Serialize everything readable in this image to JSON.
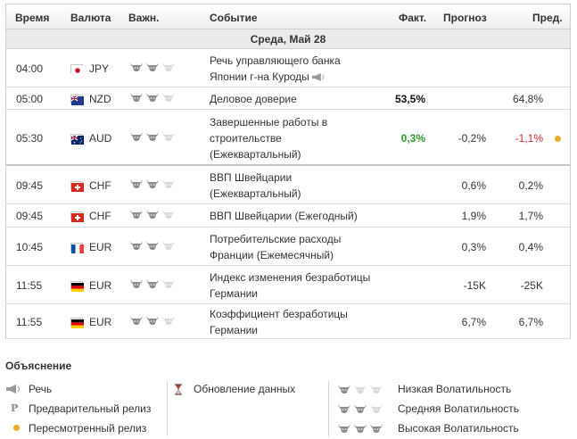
{
  "headers": {
    "time": "Время",
    "currency": "Валюта",
    "importance": "Важн.",
    "event": "Событие",
    "actual": "Факт.",
    "forecast": "Прогноз",
    "previous": "Пред."
  },
  "day_label": "Среда, Май 28",
  "events": [
    {
      "time": "04:00",
      "flag": "jp-flag-icon",
      "currency": "JPY",
      "bulls": 2,
      "event_lines": [
        "Речь управляющего банка",
        "Японии г-на Куроды"
      ],
      "speech": true,
      "actual": "",
      "forecast": "",
      "previous": ""
    },
    {
      "time": "05:00",
      "flag": "nz-flag-icon",
      "currency": "NZD",
      "bulls": 2,
      "event_lines": [
        "Деловое доверие"
      ],
      "actual": "53,5%",
      "actual_color": "#111111",
      "forecast": "",
      "previous": "64,8%"
    },
    {
      "time": "05:30",
      "flag": "au-flag-icon",
      "currency": "AUD",
      "bulls": 2,
      "event_lines": [
        "Завершенные работы в",
        "строительстве",
        "(Ежеквартальный)"
      ],
      "actual": "0,3%",
      "actual_color": "#2a9a2a",
      "forecast": "-0,2%",
      "previous": "-1,1%",
      "previous_color": "#d42a2a",
      "revised_dot": true
    },
    {
      "time": "09:45",
      "flag": "ch-flag-icon",
      "currency": "CHF",
      "bulls": 2,
      "event_lines": [
        "ВВП Швейцарии",
        "(Ежеквартальный)"
      ],
      "actual": "",
      "forecast": "0,6%",
      "previous": "0,2%"
    },
    {
      "time": "09:45",
      "flag": "ch-flag-icon",
      "currency": "CHF",
      "bulls": 2,
      "event_lines": [
        "ВВП Швейцарии (Ежегодный)"
      ],
      "actual": "",
      "forecast": "1,9%",
      "previous": "1,7%"
    },
    {
      "time": "10:45",
      "flag": "fr-flag-icon",
      "currency": "EUR",
      "bulls": 2,
      "event_lines": [
        "Потребительские расходы",
        "Франции (Ежемесячный)"
      ],
      "actual": "",
      "forecast": "0,3%",
      "previous": "0,4%"
    },
    {
      "time": "11:55",
      "flag": "de-flag-icon",
      "currency": "EUR",
      "bulls": 2,
      "event_lines": [
        "Индекс изменения безработицы",
        "Германии"
      ],
      "actual": "",
      "forecast": "-15K",
      "previous": "-25K"
    },
    {
      "time": "11:55",
      "flag": "de-flag-icon",
      "currency": "EUR",
      "bulls": 2,
      "event_lines": [
        "Коэффициент безработицы",
        "Германии"
      ],
      "actual": "",
      "forecast": "6,7%",
      "previous": "6,7%"
    }
  ],
  "legend": {
    "title": "Объяснение",
    "speech": "Речь",
    "preliminary": "Предварительный релиз",
    "revised": "Пересмотренный релиз",
    "update": "Обновление данных",
    "low": "Низкая Волатильность",
    "medium": "Средняя Волатильность",
    "high": "Высокая Волатильность"
  },
  "colors": {
    "bull_active": "#8c8c8c",
    "bull_inactive": "#d9d9d9",
    "dot": "#f0a92d"
  }
}
